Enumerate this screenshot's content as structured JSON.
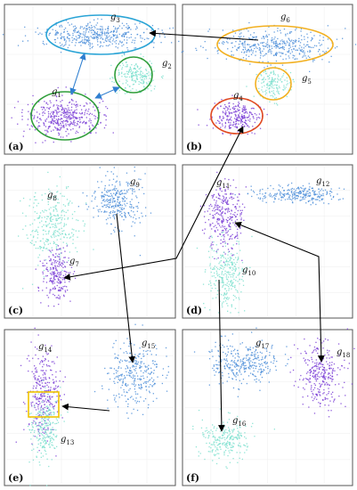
{
  "panels": [
    {
      "id": "a",
      "label": "(a)"
    },
    {
      "id": "b",
      "label": "(b)"
    },
    {
      "id": "c",
      "label": "(c)"
    },
    {
      "id": "d",
      "label": "(d)"
    },
    {
      "id": "e",
      "label": "(e)"
    },
    {
      "id": "f",
      "label": "(f)"
    }
  ],
  "groups": [
    {
      "id": "g1",
      "base": "g",
      "sub": "1"
    },
    {
      "id": "g2",
      "base": "g",
      "sub": "2"
    },
    {
      "id": "g3",
      "base": "g",
      "sub": "3"
    },
    {
      "id": "g4",
      "base": "g",
      "sub": "4"
    },
    {
      "id": "g5",
      "base": "g",
      "sub": "5"
    },
    {
      "id": "g6",
      "base": "g",
      "sub": "6"
    },
    {
      "id": "g7",
      "base": "g",
      "sub": "7"
    },
    {
      "id": "g8",
      "base": "g",
      "sub": "8"
    },
    {
      "id": "g9",
      "base": "g",
      "sub": "9"
    },
    {
      "id": "g10",
      "base": "g",
      "sub": "10"
    },
    {
      "id": "g11",
      "base": "g",
      "sub": "11"
    },
    {
      "id": "g12",
      "base": "g",
      "sub": "12"
    },
    {
      "id": "g13",
      "base": "g",
      "sub": "13"
    },
    {
      "id": "g14",
      "base": "g",
      "sub": "14"
    },
    {
      "id": "g15",
      "base": "g",
      "sub": "15"
    },
    {
      "id": "g16",
      "base": "g",
      "sub": "16"
    },
    {
      "id": "g17",
      "base": "g",
      "sub": "17"
    },
    {
      "id": "g18",
      "base": "g",
      "sub": "18"
    }
  ],
  "colors": {
    "purple": "#7b3fd6",
    "blue": "#4f8fd9",
    "cyan": "#7ee0cf",
    "ring_blue": "#2aa4d6",
    "ring_green": "#2f9e3a",
    "ring_orange": "#f2b020",
    "ring_red": "#e0481f",
    "box_yellow": "#f0c400",
    "double_arrow": "#2f7fd0",
    "arrow": "#000000",
    "frame": "#555555"
  }
}
